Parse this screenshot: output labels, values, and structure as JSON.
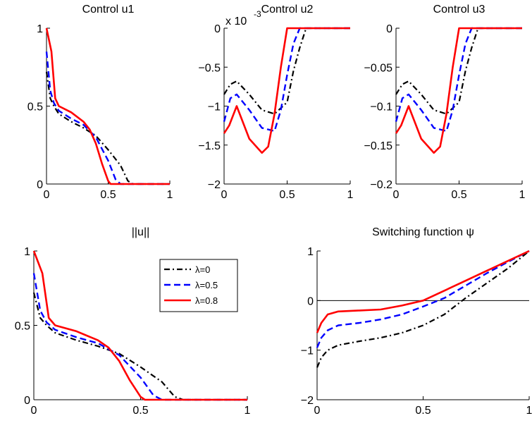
{
  "chart_data": [
    {
      "id": "u1",
      "type": "line",
      "title": "Control u1",
      "xlim": [
        0,
        1
      ],
      "ylim": [
        0,
        1
      ],
      "xticks": [
        0,
        0.5,
        1
      ],
      "yticks": [
        0,
        0.5,
        1
      ],
      "xtick_labels": [
        "0",
        "0.5",
        "1"
      ],
      "ytick_labels": [
        "0",
        "0.5",
        "1"
      ],
      "series": [
        {
          "style": "dashdot",
          "color": "#000000",
          "x": [
            0,
            0.03,
            0.06,
            0.1,
            0.2,
            0.3,
            0.4,
            0.5,
            0.6,
            0.66,
            0.7,
            1
          ],
          "y": [
            0.72,
            0.55,
            0.5,
            0.45,
            0.4,
            0.36,
            0.31,
            0.22,
            0.12,
            0.02,
            0,
            0
          ]
        },
        {
          "style": "dashed",
          "color": "#0000ff",
          "x": [
            0,
            0.03,
            0.06,
            0.1,
            0.2,
            0.3,
            0.4,
            0.5,
            0.56,
            0.6,
            1
          ],
          "y": [
            0.85,
            0.6,
            0.52,
            0.47,
            0.42,
            0.38,
            0.3,
            0.15,
            0.03,
            0,
            0
          ]
        },
        {
          "style": "solid",
          "color": "#ff0000",
          "x": [
            0,
            0.04,
            0.07,
            0.1,
            0.2,
            0.3,
            0.35,
            0.4,
            0.45,
            0.5,
            0.52,
            1
          ],
          "y": [
            1,
            0.85,
            0.55,
            0.5,
            0.46,
            0.4,
            0.35,
            0.26,
            0.13,
            0.02,
            0,
            0
          ]
        }
      ]
    },
    {
      "id": "u2",
      "type": "line",
      "title": "Control u2",
      "exponent_label": "x 10",
      "exponent_power": "-3",
      "xlim": [
        0,
        1
      ],
      "ylim": [
        -2,
        0
      ],
      "xticks": [
        0,
        0.5,
        1
      ],
      "yticks": [
        -2,
        -1.5,
        -1,
        -0.5,
        0
      ],
      "xtick_labels": [
        "0",
        "0.5",
        "1"
      ],
      "ytick_labels": [
        "−2",
        "−1.5",
        "−1",
        "−0.5",
        "0"
      ],
      "series": [
        {
          "style": "dashdot",
          "color": "#000000",
          "x": [
            0,
            0.05,
            0.1,
            0.2,
            0.3,
            0.4,
            0.5,
            0.55,
            0.6,
            0.65,
            1
          ],
          "y": [
            -0.85,
            -0.72,
            -0.68,
            -0.85,
            -1.05,
            -1.1,
            -0.95,
            -0.55,
            -0.25,
            0,
            0
          ]
        },
        {
          "style": "dashed",
          "color": "#0000ff",
          "x": [
            0,
            0.05,
            0.1,
            0.2,
            0.3,
            0.4,
            0.45,
            0.5,
            0.55,
            0.6,
            1
          ],
          "y": [
            -1.2,
            -0.9,
            -0.85,
            -1.05,
            -1.28,
            -1.32,
            -1.05,
            -0.6,
            -0.2,
            0,
            0
          ]
        },
        {
          "style": "solid",
          "color": "#ff0000",
          "x": [
            0,
            0.04,
            0.1,
            0.2,
            0.3,
            0.35,
            0.4,
            0.45,
            0.5,
            1
          ],
          "y": [
            -1.35,
            -1.25,
            -1.0,
            -1.42,
            -1.6,
            -1.52,
            -1.1,
            -0.5,
            0,
            0
          ]
        }
      ]
    },
    {
      "id": "u3",
      "type": "line",
      "title": "Control u3",
      "xlim": [
        0,
        1
      ],
      "ylim": [
        -0.2,
        0
      ],
      "xticks": [
        0,
        0.5,
        1
      ],
      "yticks": [
        -0.2,
        -0.15,
        -0.1,
        -0.05,
        0
      ],
      "xtick_labels": [
        "0",
        "0.5",
        "1"
      ],
      "ytick_labels": [
        "−0.2",
        "−0.15",
        "−0.1",
        "−0.05",
        "0"
      ],
      "series": [
        {
          "style": "dashdot",
          "color": "#000000",
          "x": [
            0,
            0.05,
            0.1,
            0.2,
            0.3,
            0.4,
            0.5,
            0.55,
            0.6,
            0.65,
            1
          ],
          "y": [
            -0.085,
            -0.072,
            -0.068,
            -0.085,
            -0.105,
            -0.11,
            -0.095,
            -0.055,
            -0.025,
            0,
            0
          ]
        },
        {
          "style": "dashed",
          "color": "#0000ff",
          "x": [
            0,
            0.05,
            0.1,
            0.2,
            0.3,
            0.4,
            0.45,
            0.5,
            0.55,
            0.6,
            1
          ],
          "y": [
            -0.12,
            -0.09,
            -0.085,
            -0.105,
            -0.128,
            -0.132,
            -0.105,
            -0.06,
            -0.02,
            0,
            0
          ]
        },
        {
          "style": "solid",
          "color": "#ff0000",
          "x": [
            0,
            0.04,
            0.1,
            0.2,
            0.3,
            0.35,
            0.4,
            0.45,
            0.5,
            1
          ],
          "y": [
            -0.135,
            -0.125,
            -0.1,
            -0.142,
            -0.16,
            -0.152,
            -0.11,
            -0.05,
            0,
            0
          ]
        }
      ]
    },
    {
      "id": "norm",
      "type": "line",
      "title": "||u||",
      "xlim": [
        0,
        1
      ],
      "ylim": [
        0,
        1
      ],
      "xticks": [
        0,
        0.5,
        1
      ],
      "yticks": [
        0,
        0.5,
        1
      ],
      "xtick_labels": [
        "0",
        "0.5",
        "1"
      ],
      "ytick_labels": [
        "0",
        "0.5",
        "1"
      ],
      "legend": {
        "placement": "top-right",
        "entries": [
          "λ=0",
          "λ=0.5",
          "λ=0.8"
        ]
      },
      "series": [
        {
          "name": "λ=0",
          "style": "dashdot",
          "color": "#000000",
          "x": [
            0,
            0.03,
            0.06,
            0.1,
            0.2,
            0.3,
            0.4,
            0.5,
            0.6,
            0.66,
            0.7,
            1
          ],
          "y": [
            0.72,
            0.55,
            0.5,
            0.45,
            0.4,
            0.36,
            0.31,
            0.22,
            0.12,
            0.02,
            0,
            0
          ]
        },
        {
          "name": "λ=0.5",
          "style": "dashed",
          "color": "#0000ff",
          "x": [
            0,
            0.03,
            0.06,
            0.1,
            0.2,
            0.3,
            0.4,
            0.5,
            0.56,
            0.6,
            1
          ],
          "y": [
            0.85,
            0.6,
            0.52,
            0.47,
            0.42,
            0.38,
            0.3,
            0.15,
            0.03,
            0,
            0
          ]
        },
        {
          "name": "λ=0.8",
          "style": "solid",
          "color": "#ff0000",
          "x": [
            0,
            0.04,
            0.07,
            0.1,
            0.2,
            0.3,
            0.35,
            0.4,
            0.45,
            0.5,
            0.52,
            1
          ],
          "y": [
            1,
            0.85,
            0.55,
            0.5,
            0.46,
            0.4,
            0.35,
            0.26,
            0.13,
            0.02,
            0,
            0
          ]
        }
      ]
    },
    {
      "id": "switch",
      "type": "line",
      "title": "Switching function ψ",
      "xlim": [
        0,
        1
      ],
      "ylim": [
        -2,
        1
      ],
      "xticks": [
        0,
        0.5,
        1
      ],
      "yticks": [
        -2,
        -1,
        0,
        1
      ],
      "xtick_labels": [
        "0",
        "0.5",
        "1"
      ],
      "ytick_labels": [
        "−2",
        "−1",
        "0",
        "1"
      ],
      "hline": 0,
      "series": [
        {
          "style": "dashdot",
          "color": "#000000",
          "x": [
            0,
            0.02,
            0.05,
            0.1,
            0.2,
            0.3,
            0.4,
            0.5,
            0.6,
            0.7,
            0.8,
            0.9,
            1
          ],
          "y": [
            -1.35,
            -1.15,
            -1.0,
            -0.9,
            -0.82,
            -0.75,
            -0.65,
            -0.5,
            -0.28,
            0.05,
            0.35,
            0.65,
            1
          ]
        },
        {
          "style": "dashed",
          "color": "#0000ff",
          "x": [
            0,
            0.02,
            0.05,
            0.1,
            0.2,
            0.3,
            0.4,
            0.5,
            0.6,
            0.7,
            0.8,
            0.9,
            1
          ],
          "y": [
            -0.95,
            -0.75,
            -0.6,
            -0.5,
            -0.45,
            -0.38,
            -0.28,
            -0.12,
            0.05,
            0.3,
            0.55,
            0.78,
            1
          ]
        },
        {
          "style": "solid",
          "color": "#ff0000",
          "x": [
            0,
            0.02,
            0.05,
            0.1,
            0.2,
            0.3,
            0.4,
            0.5,
            0.6,
            0.7,
            0.8,
            0.9,
            1
          ],
          "y": [
            -0.65,
            -0.45,
            -0.28,
            -0.22,
            -0.2,
            -0.18,
            -0.1,
            0.0,
            0.2,
            0.4,
            0.6,
            0.8,
            1
          ]
        }
      ]
    }
  ]
}
